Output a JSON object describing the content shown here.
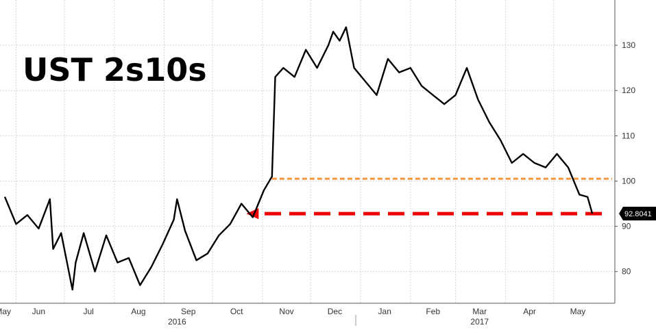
{
  "chart_data": {
    "type": "line",
    "title": "UST 2s10s",
    "ylim": [
      73,
      140
    ],
    "y_ticks": [
      80,
      90,
      100,
      110,
      120,
      130
    ],
    "y_tick_labels": [
      "80",
      "90",
      "100",
      "110",
      "120",
      "130"
    ],
    "grid": true,
    "last_value": 92.8041,
    "last_value_label": "92.8041",
    "last_value_color": "#000000",
    "line_color": "#000000",
    "reference_lines": [
      {
        "value": 100.5,
        "color": "#f0963c",
        "style": "dashed"
      },
      {
        "value": 92.8,
        "color": "#ee0000",
        "style": "dashed-arrow"
      }
    ],
    "x_month_labels": [
      "May",
      "Jun",
      "Jul",
      "Aug",
      "Sep",
      "Oct",
      "Nov",
      "Dec",
      "Jan",
      "Feb",
      "Mar",
      "Apr",
      "May"
    ],
    "x_year_labels": [
      "2016",
      "2017"
    ],
    "x": [
      "2016-05-25",
      "2016-06-01",
      "2016-06-08",
      "2016-06-15",
      "2016-06-22",
      "2016-06-24",
      "2016-06-29",
      "2016-07-06",
      "2016-07-08",
      "2016-07-13",
      "2016-07-20",
      "2016-07-27",
      "2016-08-03",
      "2016-08-10",
      "2016-08-17",
      "2016-08-24",
      "2016-08-31",
      "2016-09-07",
      "2016-09-09",
      "2016-09-14",
      "2016-09-21",
      "2016-09-28",
      "2016-10-05",
      "2016-10-12",
      "2016-10-19",
      "2016-10-26",
      "2016-11-02",
      "2016-11-07",
      "2016-11-09",
      "2016-11-14",
      "2016-11-21",
      "2016-11-28",
      "2016-12-05",
      "2016-12-12",
      "2016-12-15",
      "2016-12-19",
      "2016-12-23",
      "2016-12-28",
      "2017-01-04",
      "2017-01-11",
      "2017-01-18",
      "2017-01-25",
      "2017-02-01",
      "2017-02-08",
      "2017-02-15",
      "2017-02-22",
      "2017-03-01",
      "2017-03-08",
      "2017-03-15",
      "2017-03-22",
      "2017-03-29",
      "2017-04-05",
      "2017-04-12",
      "2017-04-19",
      "2017-04-26",
      "2017-05-03",
      "2017-05-10",
      "2017-05-17",
      "2017-05-22",
      "2017-05-25"
    ],
    "values": [
      96.5,
      90.5,
      92.5,
      89.5,
      96,
      85,
      88.5,
      76,
      82,
      88.5,
      80,
      88,
      82,
      83,
      77,
      81,
      86,
      91.5,
      96,
      89,
      82.5,
      84,
      88,
      90.5,
      95,
      92,
      98,
      101,
      123,
      125,
      123,
      129,
      125,
      130,
      133,
      131,
      134,
      125,
      122,
      119,
      127,
      124,
      125,
      121,
      119,
      117,
      119,
      125,
      118,
      113,
      109,
      104,
      106,
      104,
      103,
      106,
      103,
      97,
      96.5,
      92.8
    ]
  }
}
